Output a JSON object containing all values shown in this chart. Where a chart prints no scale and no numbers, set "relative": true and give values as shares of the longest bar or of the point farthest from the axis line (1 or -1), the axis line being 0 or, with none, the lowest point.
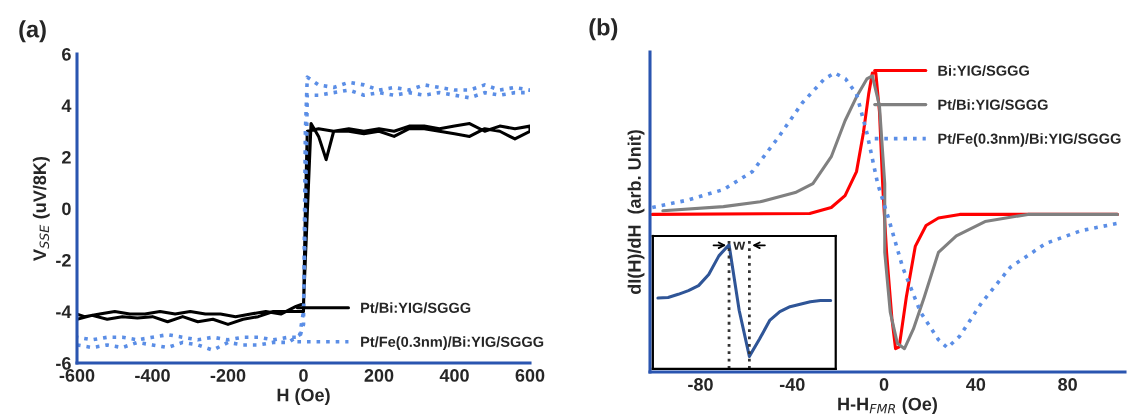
{
  "chart_data": [
    {
      "type": "line",
      "title": "(a)",
      "xlabel": "H (Oe)",
      "ylabel": "V$_{SSE}$ (uV/8K)",
      "xlim": [
        -600,
        600
      ],
      "ylim": [
        -6,
        6
      ],
      "xticks": [
        -600,
        -400,
        -200,
        0,
        200,
        400,
        600
      ],
      "yticks": [
        -6,
        -4,
        -2,
        0,
        2,
        4,
        6
      ],
      "grid": false,
      "legend": "bottom right",
      "series": [
        {
          "name": "Pt/Bi:YIG/SGGG",
          "color": "#000000",
          "line_style": "solid",
          "x": [
            -600,
            -560,
            -520,
            -480,
            -440,
            -400,
            -360,
            -320,
            -280,
            -240,
            -200,
            -160,
            -120,
            -80,
            -40,
            0,
            5,
            10,
            40,
            80,
            120,
            160,
            200,
            240,
            280,
            320,
            360,
            400,
            440,
            480,
            520,
            560,
            600,
            600,
            560,
            520,
            480,
            440,
            400,
            360,
            320,
            280,
            240,
            200,
            160,
            120,
            80,
            60,
            40,
            20,
            0,
            -20,
            -60,
            -100,
            -140,
            -180,
            -220,
            -260,
            -300,
            -340,
            -380,
            -420,
            -460,
            -500,
            -540,
            -580,
            -600
          ],
          "values": [
            -4.3,
            -4.15,
            -4.3,
            -4.2,
            -4.25,
            -4.2,
            -4.4,
            -4.2,
            -4.4,
            -4.3,
            -4.5,
            -4.3,
            -4.2,
            -4.0,
            -4.0,
            -4.0,
            0,
            3.0,
            3.1,
            3.0,
            3.0,
            2.9,
            3.0,
            2.8,
            3.1,
            3.1,
            3.0,
            2.9,
            2.8,
            3.1,
            3.0,
            2.7,
            3.0,
            3.2,
            3.1,
            3.2,
            3.0,
            3.3,
            3.2,
            3.1,
            3.2,
            3.2,
            3.0,
            3.1,
            3.0,
            3.1,
            3.0,
            1.9,
            2.8,
            3.3,
            -3.7,
            -3.8,
            -4.1,
            -4.0,
            -4.1,
            -4.2,
            -4.1,
            -4.1,
            -4.0,
            -4.1,
            -4.0,
            -4.1,
            -4.1,
            -4.0,
            -4.1,
            -4.2,
            -4.1
          ]
        },
        {
          "name": "Pt/Fe(0.3nm)/Bi:YIG/SGGG",
          "color": "#5b8ee6",
          "line_style": "dotted",
          "x": [
            -600,
            -560,
            -520,
            -480,
            -440,
            -400,
            -360,
            -320,
            -280,
            -240,
            -200,
            -160,
            -120,
            -80,
            -40,
            -10,
            0,
            5,
            10,
            40,
            80,
            120,
            160,
            200,
            240,
            280,
            320,
            360,
            400,
            440,
            480,
            520,
            560,
            600,
            600,
            560,
            520,
            480,
            440,
            400,
            360,
            320,
            280,
            240,
            200,
            160,
            120,
            80,
            40,
            10,
            5,
            0,
            -10,
            -40,
            -80,
            -120,
            -160,
            -200,
            -240,
            -280,
            -320,
            -360,
            -400,
            -440,
            -480,
            -520,
            -560,
            -600
          ],
          "values": [
            -5.3,
            -5.4,
            -5.3,
            -5.4,
            -5.2,
            -5.3,
            -5.4,
            -5.2,
            -5.3,
            -5.5,
            -5.2,
            -5.3,
            -5.3,
            -5.2,
            -5.2,
            -4.9,
            -4.0,
            0,
            4.4,
            4.4,
            4.5,
            4.6,
            4.4,
            4.5,
            4.4,
            4.5,
            4.4,
            4.5,
            4.4,
            4.3,
            4.5,
            4.4,
            4.5,
            4.5,
            4.6,
            4.7,
            4.6,
            4.8,
            4.6,
            4.6,
            4.7,
            4.8,
            4.6,
            4.7,
            4.6,
            4.8,
            4.9,
            4.7,
            4.8,
            5.1,
            3.0,
            -4.5,
            -5.0,
            -5.0,
            -5.1,
            -5.0,
            -5.0,
            -5.1,
            -5.0,
            -5.1,
            -5.0,
            -4.9,
            -5.0,
            -5.1,
            -5.0,
            -5.0,
            -5.1,
            -5.0
          ]
        }
      ]
    },
    {
      "type": "line",
      "title": "(b)",
      "xlabel": "H-H$_{FMR}$ (Oe)",
      "ylabel": "dI(H)/dH  (arb. Unit)",
      "relative": true,
      "xlim": [
        -102,
        105
      ],
      "xticks": [
        -80,
        -40,
        0,
        40,
        80
      ],
      "grid": false,
      "legend": "top right",
      "series": [
        {
          "name": "Bi:YIG/SGGG",
          "color": "#ff0000",
          "line_style": "solid",
          "x": [
            -101,
            -32.4,
            -23,
            -17,
            -12,
            -9,
            -6.7,
            -5.1,
            -3.6,
            -2,
            -0.5,
            1.1,
            3.4,
            5,
            6.6,
            9.7,
            13.6,
            18.3,
            23.7,
            33,
            101.7
          ],
          "values": [
            0.527,
            0.53,
            0.55,
            0.59,
            0.67,
            0.8,
            0.93,
            1.0,
            1.0,
            0.87,
            0.61,
            0.4,
            0.18,
            0.078,
            0.084,
            0.25,
            0.42,
            0.49,
            0.515,
            0.527,
            0.527
          ]
        },
        {
          "name": "Pt/Bi:YIG/SGGG",
          "color": "#808080",
          "line_style": "solid",
          "x": [
            -96.4,
            -70,
            -54,
            -38.7,
            -31,
            -23,
            -17,
            -12,
            -7.5,
            -5.1,
            -2,
            0.3,
            0.3,
            2.7,
            5.8,
            8.9,
            12.8,
            17.5,
            23.7,
            31.5,
            44,
            62.7,
            101.7
          ],
          "values": [
            0.539,
            0.553,
            0.569,
            0.6,
            0.63,
            0.72,
            0.84,
            0.92,
            0.98,
            0.99,
            0.89,
            0.63,
            0.4,
            0.2,
            0.096,
            0.078,
            0.144,
            0.25,
            0.4,
            0.455,
            0.503,
            0.527,
            0.527
          ]
        },
        {
          "name": "Pt/Fe(0.3nm)/Bi:YIG/SGGG",
          "color": "#5b8ee6",
          "line_style": "dotted",
          "x": [
            -101,
            -85.5,
            -70,
            -57.4,
            -46.5,
            -35.6,
            -26,
            -21.5,
            -16.8,
            -12,
            -7.5,
            -2.8,
            1.9,
            8.1,
            15.9,
            23.7,
            27.6,
            33,
            42.4,
            55,
            70.5,
            86,
            101.7
          ],
          "values": [
            0.55,
            0.575,
            0.61,
            0.67,
            0.78,
            0.9,
            0.98,
            1.0,
            0.98,
            0.93,
            0.8,
            0.63,
            0.515,
            0.35,
            0.2,
            0.108,
            0.081,
            0.12,
            0.23,
            0.35,
            0.43,
            0.473,
            0.497
          ]
        }
      ]
    },
    {
      "type": "line",
      "relative": true,
      "annotations": [
        "w"
      ],
      "categories": [
        null,
        null,
        null,
        null,
        null,
        null,
        null,
        null,
        null,
        null,
        null,
        null,
        null,
        null,
        null,
        null,
        null,
        null
      ],
      "series": [
        {
          "color": "#2f5597",
          "line_style": "solid",
          "values": [
            0.57,
            0.575,
            0.6,
            0.63,
            0.67,
            0.76,
            0.91,
            1.0,
            0.47,
            0.1,
            0.24,
            0.39,
            0.46,
            0.5,
            0.52,
            0.54,
            0.55,
            0.55
          ]
        }
      ]
    }
  ]
}
